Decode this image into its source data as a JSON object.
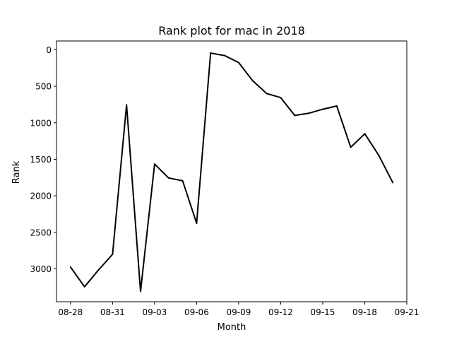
{
  "chart_data": {
    "type": "line",
    "title": "Rank plot for mac in 2018",
    "xlabel": "Month",
    "ylabel": "Rank",
    "y_inverted": true,
    "ylim": [
      3450,
      -120
    ],
    "xlim": [
      "2018-08-27",
      "2018-09-21"
    ],
    "y_ticks": [
      0,
      500,
      1000,
      1500,
      2000,
      2500,
      3000
    ],
    "x_ticks": [
      {
        "date": "2018-08-28",
        "label": "08-28"
      },
      {
        "date": "2018-08-31",
        "label": "08-31"
      },
      {
        "date": "2018-09-03",
        "label": "09-03"
      },
      {
        "date": "2018-09-06",
        "label": "09-06"
      },
      {
        "date": "2018-09-09",
        "label": "09-09"
      },
      {
        "date": "2018-09-12",
        "label": "09-12"
      },
      {
        "date": "2018-09-15",
        "label": "09-15"
      },
      {
        "date": "2018-09-18",
        "label": "09-18"
      },
      {
        "date": "2018-09-21",
        "label": "09-21"
      }
    ],
    "grid": false,
    "legend": "none",
    "line_color": "#000000",
    "series": [
      {
        "x": [
          "2018-08-28",
          "2018-08-29",
          "2018-08-30",
          "2018-08-31",
          "2018-09-01",
          "2018-09-02",
          "2018-09-03",
          "2018-09-04",
          "2018-09-05",
          "2018-09-06",
          "2018-09-07",
          "2018-09-08",
          "2018-09-09",
          "2018-09-10",
          "2018-09-11",
          "2018-09-12",
          "2018-09-13",
          "2018-09-14",
          "2018-09-15",
          "2018-09-16",
          "2018-09-17",
          "2018-09-18",
          "2018-09-19",
          "2018-09-20"
        ],
        "values": [
          2975,
          3245,
          3015,
          2800,
          755,
          3310,
          1565,
          1755,
          1795,
          2375,
          45,
          80,
          175,
          425,
          600,
          655,
          900,
          870,
          815,
          770,
          1335,
          1150,
          1445,
          1820
        ]
      }
    ]
  }
}
